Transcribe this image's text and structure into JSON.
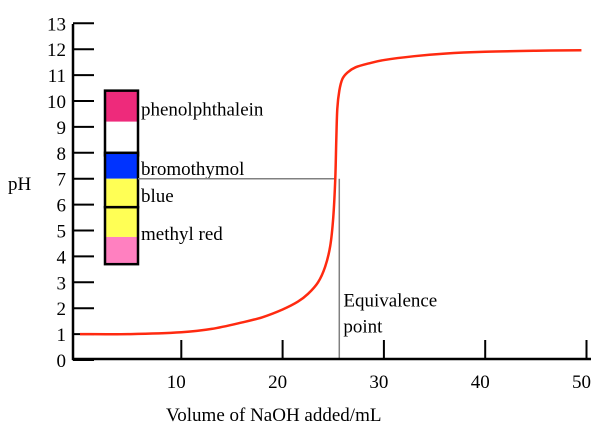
{
  "chart_data": {
    "type": "line",
    "title": "",
    "xlabel": "Volume of NaOH added/mL",
    "ylabel": "pH",
    "xlim": [
      0,
      50
    ],
    "ylim": [
      0,
      13
    ],
    "xticks": [
      10,
      20,
      30,
      40,
      50
    ],
    "yticks": [
      0,
      1,
      2,
      3,
      4,
      5,
      6,
      7,
      8,
      9,
      10,
      11,
      12,
      13
    ],
    "grid": false,
    "series": [
      {
        "color": "#ff2a10",
        "x": [
          0,
          5,
          10,
          13,
          16,
          18,
          20,
          21.5,
          22.5,
          23.5,
          24.2,
          24.7,
          25.0,
          25.2,
          25.3,
          25.4,
          25.6,
          25.9,
          26.4,
          27.2,
          28.5,
          30,
          33,
          36,
          40,
          45,
          49.5
        ],
        "y": [
          1.0,
          1.0,
          1.07,
          1.2,
          1.45,
          1.65,
          1.95,
          2.25,
          2.55,
          3.0,
          3.6,
          4.4,
          5.5,
          7.0,
          8.5,
          9.7,
          10.4,
          10.85,
          11.1,
          11.3,
          11.45,
          11.58,
          11.73,
          11.83,
          11.9,
          11.94,
          11.96
        ]
      }
    ],
    "reference_lines": {
      "equivalence_volume": 25.3,
      "equivalence_ph": 7,
      "color": "#808080"
    },
    "annotations": [
      {
        "text": "Equivalence",
        "x": 25.8,
        "y": 2.3
      },
      {
        "text": "point",
        "x": 25.8,
        "y": 1.3
      }
    ],
    "indicators": [
      {
        "name": "phenolphthalein",
        "ph_low": 7.9,
        "ph_mid": 9.2,
        "ph_high": 10.4,
        "low_color": "#ffffff",
        "high_color": "#ee2a7b"
      },
      {
        "name": "bromothymol",
        "name2": "blue",
        "ph_low": 5.9,
        "ph_mid": 7.0,
        "ph_high": 8.0,
        "low_color": "#ffff55",
        "high_color": "#0033ff"
      },
      {
        "name": "methyl red",
        "ph_low": 3.7,
        "ph_mid": 4.75,
        "ph_high": 5.9,
        "low_color": "#ff80c0",
        "high_color": "#ffff55"
      }
    ]
  }
}
